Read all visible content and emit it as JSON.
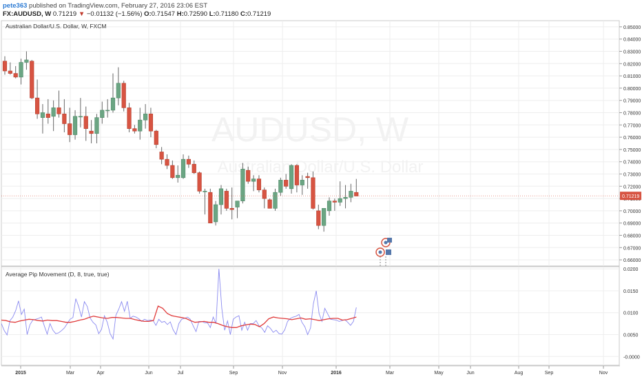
{
  "header": {
    "user": "pete363",
    "published": "published on TradingView.com, February 27, 2016 23:06 EST",
    "symbol": "FX:AUDUSD, W",
    "last": "0.71219",
    "change_arrow": "▼",
    "change": "−0.01132 (−1.56%)",
    "o_label": "O:",
    "o_value": "0.71547",
    "h_label": "H:",
    "h_value": "0.72590",
    "l_label": "L:",
    "l_value": "0.71180",
    "c_label": "C:",
    "c_value": "0.71219"
  },
  "main_pane": {
    "legend": "Australian Dollar/U.S. Dollar, W, FXCM",
    "watermark_symbol": "AUDUSD, W",
    "watermark_name": "Australian Dollar/U.S. Dollar",
    "price_tag": "0.71219"
  },
  "indicator_pane": {
    "legend": "Average Pip Movement (D, 8, true, true)"
  },
  "colors": {
    "up": "#6ba583",
    "down": "#d75442",
    "wick": "#666666",
    "pip_line": "#8a8af0",
    "pip_avg": "#e03a3a",
    "grid": "#eeeeee"
  },
  "chart_data": [
    {
      "type": "candlestick",
      "title": "Australian Dollar/U.S. Dollar, W, FXCM",
      "x_tick_labels": [
        "2015",
        "Mar",
        "Apr",
        "Jun",
        "Jul",
        "Sep",
        "Nov",
        "2016",
        "Mar",
        "May",
        "Jun",
        "Aug",
        "Sep",
        "Nov"
      ],
      "y_tick_labels": [
        "0.66000",
        "0.67000",
        "0.68000",
        "0.69000",
        "0.70000",
        "0.71000",
        "0.72000",
        "0.73000",
        "0.74000",
        "0.75000",
        "0.76000",
        "0.77000",
        "0.78000",
        "0.79000",
        "0.80000",
        "0.81000",
        "0.82000",
        "0.83000",
        "0.84000",
        "0.85000"
      ],
      "ylim": [
        0.655,
        0.855
      ],
      "last_price": 0.71219,
      "candles": [
        {
          "o": 0.822,
          "h": 0.826,
          "l": 0.811,
          "c": 0.814
        },
        {
          "o": 0.814,
          "h": 0.821,
          "l": 0.811,
          "c": 0.812
        },
        {
          "o": 0.812,
          "h": 0.818,
          "l": 0.808,
          "c": 0.809
        },
        {
          "o": 0.809,
          "h": 0.824,
          "l": 0.803,
          "c": 0.821
        },
        {
          "o": 0.821,
          "h": 0.83,
          "l": 0.815,
          "c": 0.823
        },
        {
          "o": 0.822,
          "h": 0.823,
          "l": 0.791,
          "c": 0.792
        },
        {
          "o": 0.792,
          "h": 0.807,
          "l": 0.775,
          "c": 0.779
        },
        {
          "o": 0.776,
          "h": 0.787,
          "l": 0.763,
          "c": 0.78
        },
        {
          "o": 0.779,
          "h": 0.791,
          "l": 0.771,
          "c": 0.776
        },
        {
          "o": 0.777,
          "h": 0.79,
          "l": 0.765,
          "c": 0.784
        },
        {
          "o": 0.784,
          "h": 0.798,
          "l": 0.776,
          "c": 0.779
        },
        {
          "o": 0.779,
          "h": 0.791,
          "l": 0.764,
          "c": 0.771
        },
        {
          "o": 0.771,
          "h": 0.784,
          "l": 0.756,
          "c": 0.762
        },
        {
          "o": 0.762,
          "h": 0.782,
          "l": 0.758,
          "c": 0.777
        },
        {
          "o": 0.777,
          "h": 0.792,
          "l": 0.768,
          "c": 0.777
        },
        {
          "o": 0.777,
          "h": 0.785,
          "l": 0.757,
          "c": 0.767
        },
        {
          "o": 0.765,
          "h": 0.774,
          "l": 0.755,
          "c": 0.763
        },
        {
          "o": 0.763,
          "h": 0.779,
          "l": 0.755,
          "c": 0.776
        },
        {
          "o": 0.776,
          "h": 0.789,
          "l": 0.771,
          "c": 0.782
        },
        {
          "o": 0.782,
          "h": 0.791,
          "l": 0.776,
          "c": 0.782
        },
        {
          "o": 0.782,
          "h": 0.812,
          "l": 0.78,
          "c": 0.792
        },
        {
          "o": 0.792,
          "h": 0.817,
          "l": 0.786,
          "c": 0.804
        },
        {
          "o": 0.804,
          "h": 0.806,
          "l": 0.781,
          "c": 0.784
        },
        {
          "o": 0.784,
          "h": 0.788,
          "l": 0.764,
          "c": 0.767
        },
        {
          "o": 0.767,
          "h": 0.77,
          "l": 0.763,
          "c": 0.765
        },
        {
          "o": 0.765,
          "h": 0.784,
          "l": 0.758,
          "c": 0.774
        },
        {
          "o": 0.774,
          "h": 0.787,
          "l": 0.767,
          "c": 0.779
        },
        {
          "o": 0.779,
          "h": 0.784,
          "l": 0.76,
          "c": 0.765
        },
        {
          "o": 0.765,
          "h": 0.766,
          "l": 0.751,
          "c": 0.754
        },
        {
          "o": 0.748,
          "h": 0.752,
          "l": 0.738,
          "c": 0.742
        },
        {
          "o": 0.742,
          "h": 0.746,
          "l": 0.734,
          "c": 0.737
        },
        {
          "o": 0.737,
          "h": 0.741,
          "l": 0.726,
          "c": 0.727
        },
        {
          "o": 0.727,
          "h": 0.737,
          "l": 0.723,
          "c": 0.729
        },
        {
          "o": 0.727,
          "h": 0.746,
          "l": 0.726,
          "c": 0.742
        },
        {
          "o": 0.742,
          "h": 0.745,
          "l": 0.735,
          "c": 0.738
        },
        {
          "o": 0.738,
          "h": 0.741,
          "l": 0.73,
          "c": 0.731
        },
        {
          "o": 0.731,
          "h": 0.732,
          "l": 0.714,
          "c": 0.716
        },
        {
          "o": 0.716,
          "h": 0.718,
          "l": 0.697,
          "c": 0.716
        },
        {
          "o": 0.715,
          "h": 0.718,
          "l": 0.69,
          "c": 0.69
        },
        {
          "o": 0.691,
          "h": 0.708,
          "l": 0.688,
          "c": 0.705
        },
        {
          "o": 0.705,
          "h": 0.721,
          "l": 0.697,
          "c": 0.718
        },
        {
          "o": 0.716,
          "h": 0.718,
          "l": 0.7,
          "c": 0.702
        },
        {
          "o": 0.702,
          "h": 0.719,
          "l": 0.693,
          "c": 0.701
        },
        {
          "o": 0.703,
          "h": 0.708,
          "l": 0.694,
          "c": 0.708
        },
        {
          "o": 0.708,
          "h": 0.739,
          "l": 0.706,
          "c": 0.734
        },
        {
          "o": 0.733,
          "h": 0.736,
          "l": 0.722,
          "c": 0.724
        },
        {
          "o": 0.724,
          "h": 0.729,
          "l": 0.716,
          "c": 0.726
        },
        {
          "o": 0.726,
          "h": 0.729,
          "l": 0.715,
          "c": 0.717
        },
        {
          "o": 0.717,
          "h": 0.719,
          "l": 0.702,
          "c": 0.71
        },
        {
          "o": 0.709,
          "h": 0.71,
          "l": 0.702,
          "c": 0.702
        },
        {
          "o": 0.702,
          "h": 0.718,
          "l": 0.7,
          "c": 0.715
        },
        {
          "o": 0.715,
          "h": 0.727,
          "l": 0.712,
          "c": 0.725
        },
        {
          "o": 0.725,
          "h": 0.73,
          "l": 0.718,
          "c": 0.72
        },
        {
          "o": 0.718,
          "h": 0.738,
          "l": 0.714,
          "c": 0.737
        },
        {
          "o": 0.737,
          "h": 0.738,
          "l": 0.715,
          "c": 0.721
        },
        {
          "o": 0.721,
          "h": 0.729,
          "l": 0.713,
          "c": 0.725
        },
        {
          "o": 0.728,
          "h": 0.731,
          "l": 0.718,
          "c": 0.727
        },
        {
          "o": 0.727,
          "h": 0.732,
          "l": 0.701,
          "c": 0.702
        },
        {
          "o": 0.7,
          "h": 0.705,
          "l": 0.685,
          "c": 0.688
        },
        {
          "o": 0.688,
          "h": 0.701,
          "l": 0.683,
          "c": 0.702
        },
        {
          "o": 0.7,
          "h": 0.711,
          "l": 0.696,
          "c": 0.708
        },
        {
          "o": 0.708,
          "h": 0.71,
          "l": 0.7,
          "c": 0.707
        },
        {
          "o": 0.707,
          "h": 0.724,
          "l": 0.704,
          "c": 0.71
        },
        {
          "o": 0.71,
          "h": 0.721,
          "l": 0.702,
          "c": 0.711
        },
        {
          "o": 0.711,
          "h": 0.722,
          "l": 0.707,
          "c": 0.716
        },
        {
          "o": 0.715,
          "h": 0.726,
          "l": 0.712,
          "c": 0.712
        }
      ]
    },
    {
      "type": "line",
      "title": "Average Pip Movement (D, 8, true, true)",
      "y_tick_labels": [
        "-0.0000",
        "0.0050",
        "0.0100",
        "0.0150",
        "0.0200"
      ],
      "ylim": [
        -0.002,
        0.0205
      ],
      "series": [
        {
          "values": [
            0.0075,
            0.0059,
            0.0049,
            0.0082,
            0.009,
            0.0105,
            0.0127,
            0.0096,
            0.0108,
            0.005,
            0.0073,
            0.0083,
            0.0085,
            0.0087,
            0.009,
            0.007,
            0.0051,
            0.0075,
            0.006,
            0.0052,
            0.0054,
            0.0059,
            0.0065,
            0.0075,
            0.0085,
            0.0089,
            0.0132,
            0.0114,
            0.009,
            0.0125,
            0.0114,
            0.0088,
            0.0078,
            0.0072,
            0.0052,
            0.0062,
            0.0093,
            0.0078,
            0.0052,
            0.004,
            0.0094,
            0.0108,
            0.0125,
            0.0103,
            0.0126,
            0.0087,
            0.0092,
            0.009,
            0.0086,
            0.008,
            0.0085,
            0.0082,
            0.0083,
            0.0082,
            0.0071,
            0.0085,
            0.0078,
            0.008,
            0.0073,
            0.0079,
            0.0061,
            0.005,
            0.0075,
            0.0085,
            0.0087,
            0.009,
            0.0085,
            0.007,
            0.0057,
            0.008,
            0.008,
            0.0077,
            0.0077,
            0.0066,
            0.009,
            0.0075,
            0.02,
            0.011,
            0.006,
            0.0081,
            0.005,
            0.0085,
            0.009,
            0.0093,
            0.006,
            0.0078,
            0.006,
            0.0075,
            0.0075,
            0.0082,
            0.007,
            0.0065,
            0.0055,
            0.007,
            0.0064,
            0.0055,
            0.006,
            0.0052,
            0.0051,
            0.0061,
            0.008,
            0.0087,
            0.009,
            0.0092,
            0.0096,
            0.0078,
            0.0068,
            0.005,
            0.0065,
            0.012,
            0.015,
            0.0098,
            0.008,
            0.011,
            0.0097,
            0.0085,
            0.0084,
            0.0083,
            0.008,
            0.0082,
            0.0084,
            0.0078,
            0.0071,
            0.008,
            0.0112
          ]
        },
        {
          "values": [
            0.0083,
            0.0082,
            0.0079,
            0.0078,
            0.0081,
            0.0083,
            0.0085,
            0.0084,
            0.0082,
            0.0081,
            0.0083,
            0.0082,
            0.0082,
            0.008,
            0.0078,
            0.0078,
            0.008,
            0.0083,
            0.0085,
            0.0089,
            0.0092,
            0.009,
            0.0088,
            0.0087,
            0.0089,
            0.0089,
            0.0088,
            0.0087,
            0.0087,
            0.0084,
            0.0082,
            0.008,
            0.008,
            0.0082,
            0.0115,
            0.011,
            0.0098,
            0.0093,
            0.0091,
            0.0089,
            0.0087,
            0.0082,
            0.0078,
            0.0079,
            0.008,
            0.0078,
            0.0078,
            0.0075,
            0.0071,
            0.0068,
            0.0066,
            0.0066,
            0.007,
            0.0072,
            0.0074,
            0.0073,
            0.0068,
            0.0075,
            0.0086,
            0.009,
            0.0088,
            0.0087,
            0.0086,
            0.0084,
            0.0086,
            0.0088,
            0.0085,
            0.0086,
            0.0084,
            0.0082,
            0.0084,
            0.0086,
            0.0087,
            0.0087,
            0.0083,
            0.0084,
            0.0087,
            0.009
          ]
        }
      ]
    }
  ]
}
